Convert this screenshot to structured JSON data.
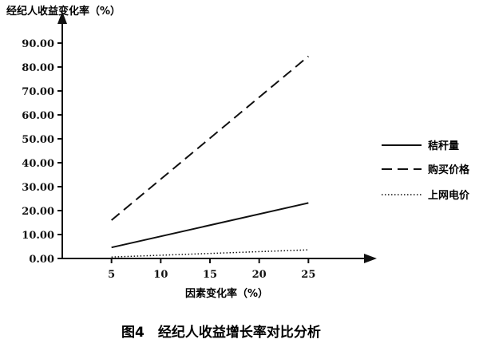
{
  "chart_data": {
    "type": "line",
    "title": "",
    "ylabel": "经纪人收益变化率（%）",
    "xlabel": "因素变化率（%）",
    "caption": "图4　经纪人收益增长率对比分析",
    "xlim": [
      0,
      30
    ],
    "ylim": [
      0,
      100
    ],
    "x_ticks": [
      5,
      10,
      15,
      20,
      25
    ],
    "x_tick_labels": [
      "5",
      "10",
      "15",
      "20",
      "25"
    ],
    "y_ticks": [
      0,
      10,
      20,
      30,
      40,
      50,
      60,
      70,
      80,
      90
    ],
    "y_tick_labels": [
      "0.00",
      "10.00",
      "20.00",
      "30.00",
      "40.00",
      "50.00",
      "60.00",
      "70.00",
      "80.00",
      "90.00"
    ],
    "legend_position": "right",
    "grid": false,
    "series": [
      {
        "name": "秸秆量",
        "style": "solid",
        "x": [
          5,
          25
        ],
        "values": [
          4.6,
          23.2
        ]
      },
      {
        "name": "购买价格",
        "style": "dashed",
        "x": [
          5,
          25
        ],
        "values": [
          16.0,
          84.5
        ]
      },
      {
        "name": "上网电价",
        "style": "dotted",
        "x": [
          5,
          25
        ],
        "values": [
          0.6,
          3.6
        ]
      }
    ]
  }
}
